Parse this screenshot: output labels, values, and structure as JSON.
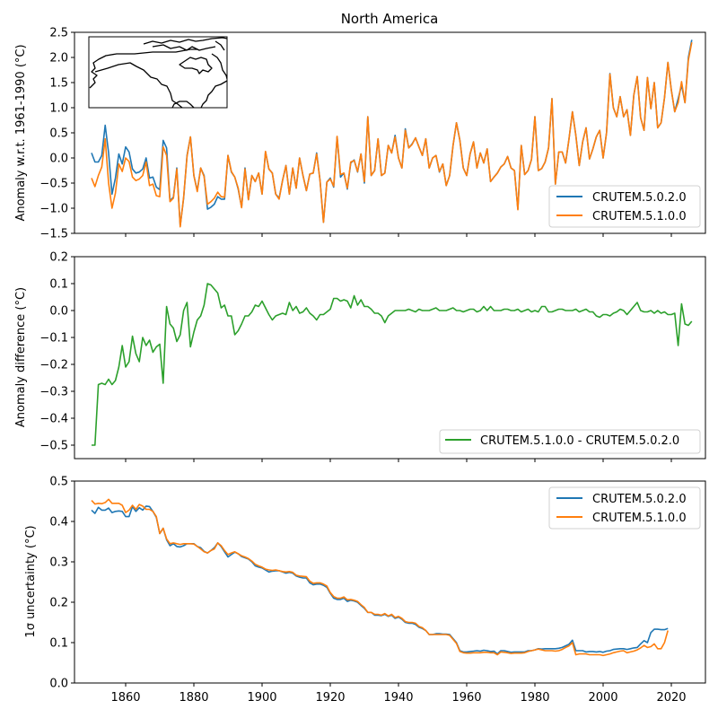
{
  "chart_data": [
    {
      "type": "line",
      "title": "North America",
      "xlabel": "",
      "ylabel": "Anomaly w.r.t. 1961-1990 (°C)",
      "xlim": [
        1845,
        2030
      ],
      "ylim": [
        -1.5,
        2.5
      ],
      "yticks": [
        -1.5,
        -1.0,
        -0.5,
        0.0,
        0.5,
        1.0,
        1.5,
        2.0,
        2.5
      ],
      "ytick_labels": [
        "−1.5",
        "−1.0",
        "−0.5",
        "0.0",
        "0.5",
        "1.0",
        "1.5",
        "2.0",
        "2.5"
      ],
      "xticks": [
        1860,
        1880,
        1900,
        1920,
        1940,
        1960,
        1980,
        2000,
        2020
      ],
      "grid": false,
      "legend": "lower-right",
      "inset": "map-of-north-america",
      "x_start": 1850,
      "series": [
        {
          "name": "CRUTEM.5.0.2.0",
          "color": "#1f77b4",
          "values": [
            0.1,
            -0.08,
            -0.08,
            0.05,
            0.65,
            0.1,
            -0.72,
            -0.4,
            0.08,
            -0.12,
            0.22,
            0.12,
            -0.22,
            -0.3,
            -0.28,
            -0.22,
            0.0,
            -0.4,
            -0.38,
            -0.58,
            -0.63,
            0.35,
            0.2,
            -0.85,
            -0.78,
            -0.2,
            -1.35,
            -0.8,
            0.05,
            0.42,
            -0.35,
            -0.65,
            -0.2,
            -0.35,
            -1.02,
            -0.98,
            -0.92,
            -0.77,
            -0.82,
            -0.82,
            0.05,
            -0.28,
            -0.38,
            -0.62,
            -0.98,
            -0.2,
            -0.83,
            -0.35,
            -0.47,
            -0.3,
            -0.72,
            0.12,
            -0.22,
            -0.3,
            -0.72,
            -0.8,
            -0.45,
            -0.15,
            -0.72,
            -0.2,
            -0.6,
            0.0,
            -0.35,
            -0.65,
            -0.32,
            -0.3,
            0.1,
            -0.45,
            -1.28,
            -0.48,
            -0.4,
            -0.58,
            0.42,
            -0.38,
            -0.3,
            -0.62,
            -0.1,
            -0.04,
            -0.28,
            0.08,
            -0.5,
            0.82,
            -0.35,
            -0.25,
            0.38,
            -0.35,
            -0.3,
            0.25,
            0.1,
            0.45,
            0.0,
            -0.2,
            0.58,
            0.2,
            0.28,
            0.4,
            0.22,
            0.05,
            0.38,
            -0.2,
            0.0,
            0.05,
            -0.28,
            -0.12,
            -0.55,
            -0.35,
            0.25,
            0.7,
            0.35,
            -0.2,
            -0.35,
            0.08,
            0.32,
            -0.2,
            0.1,
            -0.1,
            0.18,
            -0.47,
            -0.38,
            -0.3,
            -0.18,
            -0.12,
            0.03,
            -0.2,
            -0.25,
            -1.02,
            0.25,
            -0.33,
            -0.25,
            -0.03,
            0.82,
            -0.25,
            -0.21,
            -0.08,
            0.2,
            1.18,
            -0.52,
            0.12,
            0.12,
            -0.1,
            0.38,
            0.92,
            0.45,
            -0.15,
            0.32,
            0.6,
            -0.02,
            0.18,
            0.42,
            0.55,
            0.0,
            0.5,
            1.68,
            1.0,
            0.82,
            1.22,
            0.82,
            0.96,
            0.45,
            1.25,
            1.62,
            0.8,
            0.55,
            1.6,
            0.98,
            1.5,
            0.6,
            0.7,
            1.2,
            1.9,
            1.35,
            0.92,
            1.18,
            1.45,
            1.1,
            2.0,
            2.35
          ]
        },
        {
          "name": "CRUTEM.5.1.0.0",
          "color": "#ff7f0e",
          "values": [
            -0.4,
            -0.57,
            -0.35,
            -0.18,
            0.38,
            -0.5,
            -1.0,
            -0.7,
            -0.12,
            -0.27,
            0.0,
            -0.07,
            -0.38,
            -0.45,
            -0.42,
            -0.35,
            -0.08,
            -0.55,
            -0.52,
            -0.75,
            -0.77,
            0.22,
            0.05,
            -0.87,
            -0.8,
            -0.22,
            -1.37,
            -0.78,
            0.03,
            0.42,
            -0.35,
            -0.67,
            -0.2,
            -0.37,
            -0.92,
            -0.87,
            -0.8,
            -0.68,
            -0.77,
            -0.78,
            0.05,
            -0.27,
            -0.38,
            -0.6,
            -0.99,
            -0.22,
            -0.83,
            -0.35,
            -0.47,
            -0.3,
            -0.72,
            0.13,
            -0.22,
            -0.3,
            -0.72,
            -0.82,
            -0.45,
            -0.15,
            -0.72,
            -0.2,
            -0.6,
            0.0,
            -0.35,
            -0.65,
            -0.32,
            -0.3,
            0.08,
            -0.45,
            -1.28,
            -0.48,
            -0.42,
            -0.56,
            0.43,
            -0.33,
            -0.3,
            -0.6,
            -0.08,
            -0.05,
            -0.27,
            0.08,
            -0.47,
            0.82,
            -0.35,
            -0.25,
            0.38,
            -0.35,
            -0.3,
            0.25,
            0.1,
            0.42,
            0.0,
            -0.2,
            0.55,
            0.2,
            0.27,
            0.4,
            0.22,
            0.05,
            0.38,
            -0.2,
            0.0,
            0.05,
            -0.27,
            -0.12,
            -0.55,
            -0.35,
            0.25,
            0.7,
            0.35,
            -0.2,
            -0.35,
            0.08,
            0.32,
            -0.2,
            0.1,
            -0.1,
            0.18,
            -0.47,
            -0.38,
            -0.3,
            -0.18,
            -0.12,
            0.03,
            -0.2,
            -0.25,
            -1.03,
            0.25,
            -0.33,
            -0.25,
            -0.03,
            0.82,
            -0.25,
            -0.21,
            -0.08,
            0.2,
            1.18,
            -0.52,
            0.12,
            0.12,
            -0.1,
            0.38,
            0.92,
            0.45,
            -0.15,
            0.32,
            0.6,
            -0.02,
            0.18,
            0.42,
            0.55,
            0.0,
            0.5,
            1.67,
            1.0,
            0.82,
            1.22,
            0.82,
            0.96,
            0.45,
            1.25,
            1.62,
            0.8,
            0.55,
            1.6,
            0.98,
            1.5,
            0.6,
            0.7,
            1.2,
            1.9,
            1.35,
            0.92,
            1.1,
            1.52,
            1.1,
            1.95,
            2.3
          ]
        }
      ]
    },
    {
      "type": "line",
      "title": "",
      "xlabel": "",
      "ylabel": "Anomaly difference (°C)",
      "xlim": [
        1845,
        2030
      ],
      "ylim": [
        -0.55,
        0.2
      ],
      "yticks": [
        -0.5,
        -0.4,
        -0.3,
        -0.2,
        -0.1,
        0.0,
        0.1,
        0.2
      ],
      "ytick_labels": [
        "−0.5",
        "−0.4",
        "−0.3",
        "−0.2",
        "−0.1",
        "0.0",
        "0.1",
        "0.2"
      ],
      "xticks": [
        1860,
        1880,
        1900,
        1920,
        1940,
        1960,
        1980,
        2000,
        2020
      ],
      "grid": false,
      "legend": "lower-right",
      "x_start": 1850,
      "series": [
        {
          "name": "CRUTEM.5.1.0.0 - CRUTEM.5.0.2.0",
          "color": "#2ca02c",
          "values": [
            -0.5,
            -0.5,
            -0.275,
            -0.27,
            -0.275,
            -0.255,
            -0.275,
            -0.26,
            -0.21,
            -0.13,
            -0.21,
            -0.19,
            -0.095,
            -0.16,
            -0.19,
            -0.1,
            -0.13,
            -0.11,
            -0.155,
            -0.135,
            -0.125,
            -0.27,
            0.015,
            -0.05,
            -0.065,
            -0.115,
            -0.09,
            0.0,
            0.03,
            -0.135,
            -0.08,
            -0.035,
            -0.02,
            0.02,
            0.1,
            0.095,
            0.08,
            0.065,
            0.01,
            0.02,
            -0.02,
            -0.02,
            -0.09,
            -0.075,
            -0.05,
            -0.02,
            -0.02,
            -0.005,
            0.02,
            0.015,
            0.035,
            0.01,
            -0.015,
            -0.035,
            -0.02,
            -0.015,
            -0.01,
            -0.015,
            0.03,
            0.0,
            0.015,
            -0.01,
            -0.005,
            0.01,
            -0.01,
            -0.02,
            -0.035,
            -0.015,
            -0.015,
            -0.005,
            0.005,
            0.045,
            0.045,
            0.035,
            0.04,
            0.035,
            0.01,
            0.055,
            0.02,
            0.04,
            0.015,
            0.015,
            0.005,
            -0.01,
            -0.01,
            -0.02,
            -0.045,
            -0.02,
            -0.01,
            0.0,
            0.0,
            0.0,
            0.0,
            0.005,
            0.0,
            -0.005,
            0.005,
            0.0,
            0.0,
            0.0,
            0.005,
            0.01,
            0.0,
            0.0,
            0.0,
            0.005,
            0.01,
            0.0,
            0.0,
            -0.005,
            0.0,
            0.005,
            0.005,
            -0.005,
            0.0,
            0.015,
            0.0,
            0.015,
            0.0,
            0.0,
            0.0,
            0.005,
            0.005,
            0.0,
            0.0,
            0.005,
            -0.005,
            0.0,
            0.005,
            -0.005,
            0.0,
            -0.005,
            0.015,
            0.015,
            -0.005,
            -0.005,
            0.0,
            0.005,
            0.005,
            0.0,
            0.0,
            0.0,
            0.005,
            -0.005,
            0.0,
            0.005,
            -0.005,
            -0.005,
            -0.02,
            -0.025,
            -0.015,
            -0.015,
            -0.02,
            -0.01,
            -0.005,
            0.005,
            0.0,
            -0.015,
            0.0,
            0.015,
            0.03,
            0.0,
            -0.005,
            -0.005,
            0.0,
            -0.01,
            0.0,
            -0.01,
            -0.005,
            -0.015,
            -0.015,
            -0.01,
            -0.13,
            0.025,
            -0.05,
            -0.055,
            -0.04
          ]
        }
      ]
    },
    {
      "type": "line",
      "title": "",
      "xlabel": "",
      "ylabel": "1σ uncertainty (°C)",
      "xlim": [
        1845,
        2030
      ],
      "ylim": [
        0.0,
        0.5
      ],
      "yticks": [
        0.0,
        0.1,
        0.2,
        0.3,
        0.4,
        0.5
      ],
      "ytick_labels": [
        "0.0",
        "0.1",
        "0.2",
        "0.3",
        "0.4",
        "0.5"
      ],
      "xticks": [
        1860,
        1880,
        1900,
        1920,
        1940,
        1960,
        1980,
        2000,
        2020
      ],
      "xtick_labels": [
        "1860",
        "1880",
        "1900",
        "1920",
        "1940",
        "1960",
        "1980",
        "2000",
        "2020"
      ],
      "grid": false,
      "legend": "upper-right",
      "x_start": 1850,
      "series": [
        {
          "name": "CRUTEM.5.0.2.0",
          "color": "#1f77b4",
          "values": [
            0.428,
            0.42,
            0.435,
            0.428,
            0.428,
            0.433,
            0.422,
            0.425,
            0.426,
            0.425,
            0.412,
            0.412,
            0.437,
            0.425,
            0.434,
            0.428,
            0.438,
            0.437,
            0.425,
            0.41,
            0.37,
            0.383,
            0.355,
            0.34,
            0.345,
            0.338,
            0.337,
            0.34,
            0.345,
            0.345,
            0.345,
            0.338,
            0.335,
            0.326,
            0.322,
            0.328,
            0.335,
            0.347,
            0.338,
            0.325,
            0.312,
            0.318,
            0.324,
            0.32,
            0.313,
            0.31,
            0.307,
            0.3,
            0.29,
            0.287,
            0.285,
            0.28,
            0.275,
            0.277,
            0.278,
            0.278,
            0.275,
            0.272,
            0.274,
            0.272,
            0.265,
            0.262,
            0.26,
            0.26,
            0.248,
            0.243,
            0.245,
            0.245,
            0.242,
            0.237,
            0.222,
            0.21,
            0.207,
            0.207,
            0.21,
            0.202,
            0.205,
            0.203,
            0.2,
            0.192,
            0.185,
            0.175,
            0.175,
            0.168,
            0.168,
            0.167,
            0.17,
            0.165,
            0.168,
            0.16,
            0.163,
            0.158,
            0.15,
            0.148,
            0.148,
            0.145,
            0.138,
            0.135,
            0.13,
            0.12,
            0.12,
            0.122,
            0.122,
            0.121,
            0.121,
            0.12,
            0.11,
            0.1,
            0.08,
            0.077,
            0.077,
            0.078,
            0.079,
            0.08,
            0.079,
            0.081,
            0.08,
            0.078,
            0.079,
            0.072,
            0.08,
            0.08,
            0.078,
            0.076,
            0.077,
            0.077,
            0.077,
            0.077,
            0.08,
            0.08,
            0.082,
            0.085,
            0.084,
            0.085,
            0.085,
            0.085,
            0.085,
            0.086,
            0.088,
            0.092,
            0.096,
            0.106,
            0.08,
            0.08,
            0.08,
            0.077,
            0.078,
            0.078,
            0.077,
            0.078,
            0.076,
            0.079,
            0.08,
            0.083,
            0.084,
            0.085,
            0.085,
            0.083,
            0.085,
            0.087,
            0.088,
            0.097,
            0.105,
            0.1,
            0.125,
            0.133,
            0.133,
            0.132,
            0.132,
            0.135
          ]
        },
        {
          "name": "CRUTEM.5.1.0.0",
          "color": "#ff7f0e",
          "values": [
            0.452,
            0.443,
            0.445,
            0.444,
            0.447,
            0.455,
            0.445,
            0.445,
            0.445,
            0.44,
            0.422,
            0.428,
            0.44,
            0.43,
            0.442,
            0.438,
            0.43,
            0.43,
            0.425,
            0.412,
            0.37,
            0.383,
            0.357,
            0.345,
            0.347,
            0.345,
            0.343,
            0.345,
            0.345,
            0.345,
            0.344,
            0.338,
            0.332,
            0.325,
            0.322,
            0.328,
            0.332,
            0.347,
            0.34,
            0.328,
            0.318,
            0.322,
            0.325,
            0.32,
            0.315,
            0.312,
            0.308,
            0.302,
            0.294,
            0.29,
            0.287,
            0.282,
            0.28,
            0.279,
            0.28,
            0.278,
            0.276,
            0.275,
            0.276,
            0.274,
            0.267,
            0.265,
            0.264,
            0.263,
            0.252,
            0.247,
            0.248,
            0.248,
            0.245,
            0.24,
            0.224,
            0.214,
            0.21,
            0.21,
            0.213,
            0.206,
            0.207,
            0.205,
            0.202,
            0.194,
            0.187,
            0.175,
            0.175,
            0.17,
            0.17,
            0.168,
            0.172,
            0.166,
            0.17,
            0.162,
            0.165,
            0.16,
            0.152,
            0.15,
            0.15,
            0.148,
            0.14,
            0.137,
            0.13,
            0.12,
            0.12,
            0.12,
            0.12,
            0.12,
            0.12,
            0.118,
            0.108,
            0.098,
            0.078,
            0.075,
            0.074,
            0.074,
            0.075,
            0.075,
            0.075,
            0.076,
            0.076,
            0.075,
            0.075,
            0.07,
            0.077,
            0.076,
            0.075,
            0.073,
            0.074,
            0.074,
            0.074,
            0.075,
            0.078,
            0.08,
            0.082,
            0.084,
            0.082,
            0.08,
            0.08,
            0.08,
            0.079,
            0.08,
            0.083,
            0.088,
            0.092,
            0.1,
            0.07,
            0.072,
            0.072,
            0.072,
            0.07,
            0.07,
            0.07,
            0.07,
            0.068,
            0.07,
            0.072,
            0.075,
            0.077,
            0.079,
            0.08,
            0.075,
            0.077,
            0.079,
            0.082,
            0.087,
            0.093,
            0.088,
            0.09,
            0.097,
            0.085,
            0.085,
            0.1,
            0.13
          ]
        }
      ]
    }
  ]
}
